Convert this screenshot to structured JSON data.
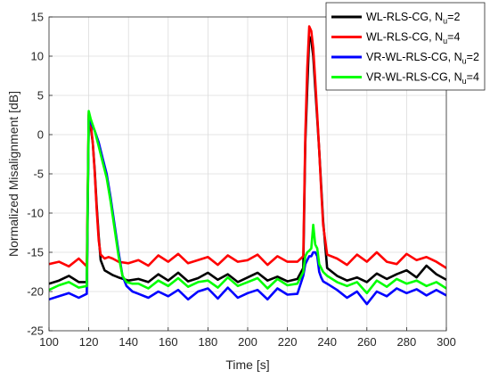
{
  "chart_data": {
    "type": "line",
    "title": "",
    "xlabel": "Time [s]",
    "ylabel": "Normalized Misalignment [dB]",
    "xlim": [
      100,
      300
    ],
    "ylim": [
      -25,
      15
    ],
    "xticks": [
      100,
      120,
      140,
      160,
      180,
      200,
      220,
      240,
      260,
      280,
      300
    ],
    "yticks": [
      -25,
      -20,
      -15,
      -10,
      -5,
      0,
      5,
      10,
      15
    ],
    "xtick_labels": [
      "100",
      "120",
      "140",
      "160",
      "180",
      "200",
      "220",
      "240",
      "260",
      "280",
      "300"
    ],
    "ytick_labels": [
      "-25",
      "-20",
      "-15",
      "-10",
      "-5",
      "0",
      "5",
      "10",
      "15"
    ],
    "grid": true,
    "legend_position": "top-right",
    "series": [
      {
        "name_main": "WL-RLS-CG, N",
        "name_sub": "u",
        "name_tail": "=2",
        "color": "#000000",
        "x": [
          100,
          105,
          110,
          115,
          119,
          120,
          121,
          122,
          123,
          124,
          125,
          126,
          128,
          130,
          132,
          135,
          140,
          145,
          150,
          155,
          160,
          165,
          170,
          175,
          180,
          185,
          190,
          195,
          200,
          205,
          210,
          215,
          220,
          225,
          228,
          229,
          230,
          231,
          232,
          233,
          234,
          235,
          236,
          237,
          238,
          240,
          245,
          250,
          255,
          260,
          265,
          270,
          275,
          280,
          285,
          290,
          295,
          300
        ],
        "values": [
          -19.0,
          -18.6,
          -18.0,
          -18.8,
          -18.8,
          2.5,
          1.0,
          -1.0,
          -4.5,
          -9.0,
          -13.0,
          -16.0,
          -17.3,
          -17.6,
          -17.9,
          -18.2,
          -18.6,
          -18.4,
          -18.8,
          -17.8,
          -18.6,
          -17.6,
          -18.7,
          -18.3,
          -17.6,
          -18.5,
          -17.8,
          -18.8,
          -18.2,
          -17.6,
          -18.6,
          -18.1,
          -18.7,
          -18.4,
          -17.0,
          -1.0,
          6.0,
          12.5,
          12.0,
          10.0,
          6.0,
          2.0,
          -2.0,
          -6.5,
          -11.0,
          -17.0,
          -18.0,
          -18.6,
          -18.2,
          -18.8,
          -17.7,
          -18.4,
          -17.8,
          -17.3,
          -18.2,
          -16.7,
          -17.8,
          -18.5
        ]
      },
      {
        "name_main": "WL-RLS-CG, N",
        "name_sub": "u",
        "name_tail": "=4",
        "color": "#ff0000",
        "x": [
          100,
          105,
          110,
          115,
          119,
          120,
          121,
          122,
          123,
          124,
          125,
          126,
          128,
          130,
          132,
          135,
          140,
          145,
          150,
          155,
          160,
          165,
          170,
          175,
          180,
          185,
          190,
          195,
          200,
          205,
          210,
          215,
          220,
          225,
          228,
          229,
          230,
          231,
          232,
          233,
          234,
          235,
          236,
          237,
          238,
          240,
          245,
          250,
          255,
          260,
          265,
          270,
          275,
          280,
          285,
          290,
          295,
          300
        ],
        "values": [
          -16.5,
          -16.2,
          -16.8,
          -15.8,
          -16.8,
          2.8,
          1.5,
          -1.0,
          -4.8,
          -9.5,
          -13.5,
          -15.3,
          -15.8,
          -15.6,
          -15.8,
          -16.2,
          -16.4,
          -16.0,
          -16.7,
          -15.4,
          -16.2,
          -15.2,
          -16.4,
          -16.0,
          -15.6,
          -16.6,
          -15.4,
          -16.2,
          -16.0,
          -15.3,
          -16.6,
          -15.5,
          -16.2,
          -16.2,
          -15.5,
          0.0,
          8.5,
          13.8,
          13.2,
          11.0,
          7.0,
          2.5,
          -2.0,
          -7.0,
          -11.5,
          -15.3,
          -15.8,
          -16.6,
          -15.3,
          -16.2,
          -15.0,
          -16.2,
          -16.5,
          -15.2,
          -16.0,
          -15.6,
          -16.2,
          -17.0
        ]
      },
      {
        "name_main": "VR-WL-RLS-CG, N",
        "name_sub": "u",
        "name_tail": "=2",
        "color": "#0000ff",
        "x": [
          100,
          105,
          110,
          115,
          119,
          120,
          121,
          123,
          125,
          127,
          129,
          131,
          133,
          135,
          137,
          139,
          142,
          145,
          150,
          155,
          160,
          165,
          170,
          175,
          180,
          185,
          190,
          195,
          200,
          205,
          210,
          215,
          220,
          225,
          228,
          229,
          230,
          231,
          232,
          233,
          234,
          235,
          236,
          237,
          238,
          240,
          245,
          250,
          255,
          260,
          265,
          270,
          275,
          280,
          285,
          290,
          295,
          300
        ],
        "values": [
          -21.0,
          -20.6,
          -20.2,
          -20.8,
          -20.3,
          2.0,
          1.5,
          0.5,
          -1.0,
          -3.0,
          -5.0,
          -8.0,
          -11.5,
          -15.0,
          -18.0,
          -19.3,
          -20.0,
          -20.3,
          -20.8,
          -20.0,
          -20.6,
          -19.8,
          -21.0,
          -20.0,
          -19.6,
          -20.9,
          -19.5,
          -20.8,
          -20.2,
          -19.8,
          -21.0,
          -19.6,
          -20.4,
          -20.3,
          -18.0,
          -16.5,
          -16.0,
          -15.5,
          -15.5,
          -15.0,
          -15.0,
          -15.5,
          -17.5,
          -18.2,
          -18.7,
          -19.0,
          -19.8,
          -20.8,
          -20.0,
          -21.6,
          -20.0,
          -20.6,
          -19.6,
          -20.2,
          -19.7,
          -20.5,
          -19.8,
          -20.5
        ]
      },
      {
        "name_main": "VR-WL-RLS-CG, N",
        "name_sub": "u",
        "name_tail": "=4",
        "color": "#00ff00",
        "x": [
          100,
          105,
          110,
          115,
          119,
          120,
          121,
          123,
          125,
          127,
          129,
          131,
          133,
          135,
          137,
          139,
          142,
          145,
          150,
          155,
          160,
          165,
          170,
          175,
          180,
          185,
          190,
          195,
          200,
          205,
          210,
          215,
          220,
          225,
          228,
          229,
          230,
          231,
          232,
          233,
          234,
          235,
          236,
          237,
          238,
          240,
          245,
          250,
          255,
          260,
          265,
          270,
          275,
          280,
          285,
          290,
          295,
          300
        ],
        "values": [
          -19.8,
          -19.2,
          -18.8,
          -19.5,
          -19.3,
          3.0,
          2.0,
          0.5,
          -1.5,
          -3.5,
          -5.5,
          -8.5,
          -12.0,
          -15.5,
          -18.0,
          -18.8,
          -19.0,
          -19.0,
          -19.6,
          -18.6,
          -19.3,
          -18.3,
          -19.4,
          -18.8,
          -18.6,
          -19.5,
          -18.2,
          -19.3,
          -18.8,
          -18.3,
          -19.6,
          -18.4,
          -19.2,
          -19.0,
          -17.5,
          -15.5,
          -15.0,
          -14.8,
          -14.5,
          -11.5,
          -14.0,
          -14.5,
          -16.5,
          -17.0,
          -17.5,
          -18.0,
          -18.8,
          -19.3,
          -18.8,
          -20.2,
          -18.6,
          -19.4,
          -18.4,
          -19.0,
          -18.6,
          -19.3,
          -18.8,
          -19.6
        ]
      }
    ]
  }
}
